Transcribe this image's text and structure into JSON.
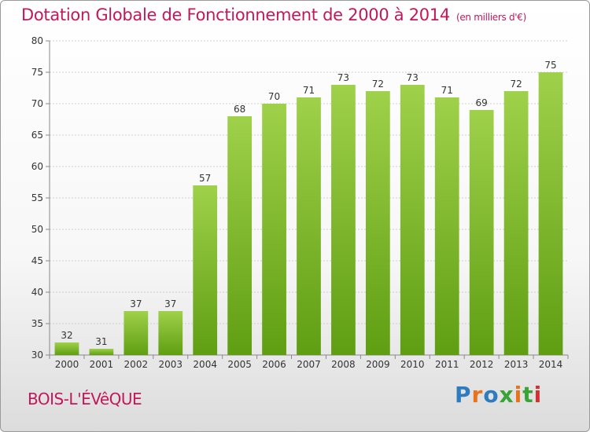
{
  "header": {
    "title": "Dotation Globale de Fonctionnement de 2000 à 2014",
    "subtitle": "(en milliers d'€)"
  },
  "footer": {
    "place": "BOIS-L'ÉVêQUE",
    "logo": "Proxiti",
    "logo_colors": [
      "#2e7bbf",
      "#e8731a",
      "#2e7bbf",
      "#3aa335",
      "#e8731a",
      "#3aa335",
      "#d62f2f"
    ]
  },
  "chart_data": {
    "type": "bar",
    "title": "Dotation Globale de Fonctionnement de 2000 à 2014",
    "subtitle": "(en milliers d'€)",
    "xlabel": "",
    "ylabel": "",
    "categories": [
      "2000",
      "2001",
      "2002",
      "2003",
      "2004",
      "2005",
      "2006",
      "2007",
      "2008",
      "2009",
      "2010",
      "2011",
      "2012",
      "2013",
      "2014"
    ],
    "values": [
      32,
      31,
      37,
      37,
      57,
      68,
      70,
      71,
      73,
      72,
      73,
      71,
      69,
      72,
      75
    ],
    "ylim": [
      30,
      80
    ],
    "yticks": [
      30,
      35,
      40,
      45,
      50,
      55,
      60,
      65,
      70,
      75,
      80
    ],
    "grid": true,
    "bar_color_top": "#9fd14a",
    "bar_color_bottom": "#5f9e12"
  }
}
